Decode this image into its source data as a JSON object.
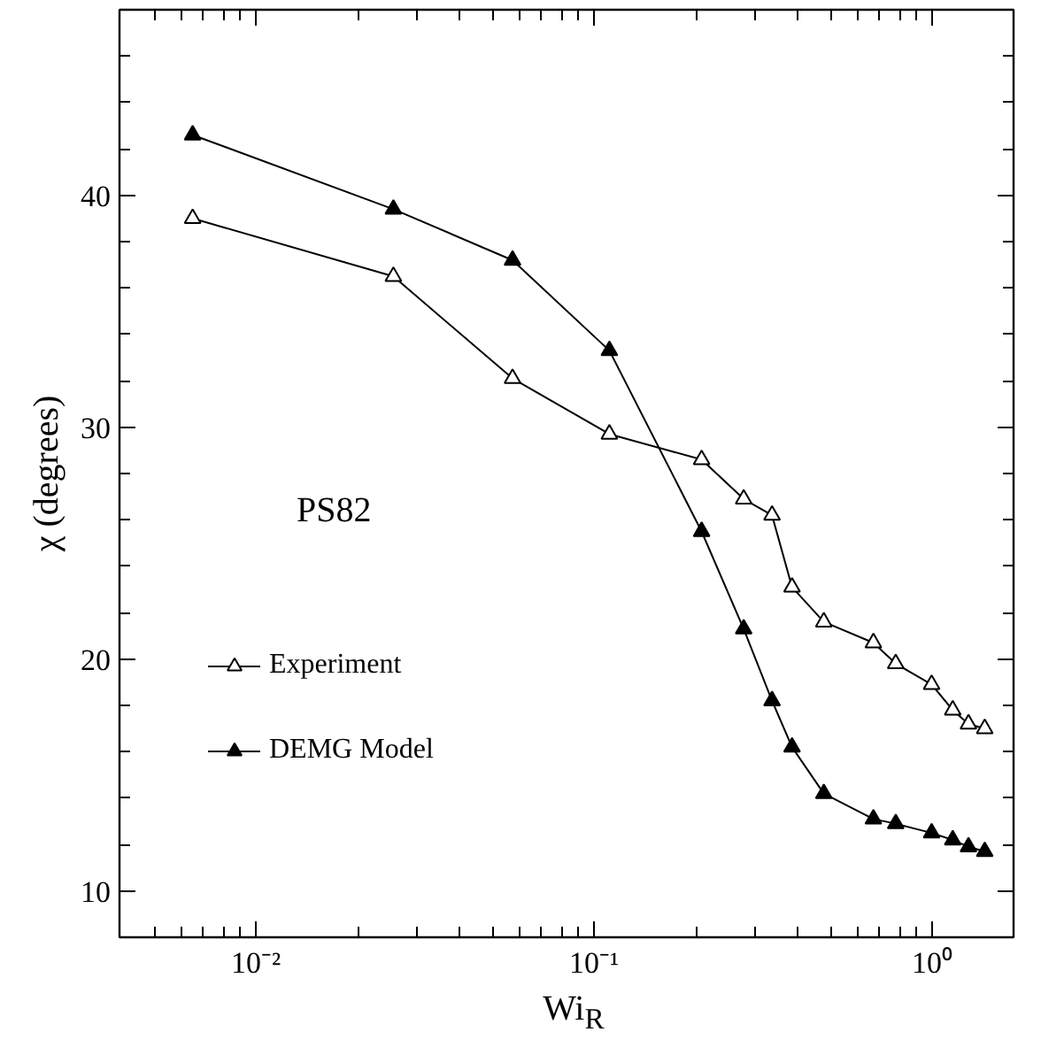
{
  "chart_data": {
    "type": "line",
    "xlabel": "Wi$_{R}$",
    "ylabel": "χ (degrees)",
    "annotations": [
      "PS82"
    ],
    "x": [
      0.0065,
      0.0255,
      0.0574,
      0.111,
      0.208,
      0.277,
      0.336,
      0.385,
      0.478,
      0.67,
      0.78,
      0.996,
      1.15,
      1.28,
      1.43
    ],
    "series": [
      {
        "name": "Experiment",
        "color": "#000000",
        "marker": "triangle_open",
        "values": [
          39.0,
          36.5,
          32.1,
          29.7,
          28.6,
          26.9,
          26.2,
          23.1,
          21.6,
          20.7,
          19.8,
          18.9,
          17.8,
          17.2,
          17.0
        ]
      },
      {
        "name": "DEMG Model",
        "color": "#000000",
        "marker": "triangle",
        "values": [
          42.6,
          39.4,
          37.2,
          33.3,
          25.5,
          21.3,
          18.2,
          16.2,
          14.2,
          13.1,
          12.9,
          12.5,
          12.2,
          11.9,
          11.7
        ]
      }
    ],
    "log": "x",
    "xlim": [
      0.00395,
      1.74
    ],
    "ylim": [
      8,
      48
    ],
    "xticks": [
      {
        "value": 0.005,
        "label": null
      },
      {
        "value": 0.006,
        "label": null
      },
      {
        "value": 0.007,
        "label": null
      },
      {
        "value": 0.008,
        "label": null
      },
      {
        "value": 0.009,
        "label": null
      },
      {
        "value": 0.01,
        "label": "10⁻²"
      },
      {
        "value": 0.02,
        "label": null
      },
      {
        "value": 0.03,
        "label": null
      },
      {
        "value": 0.04,
        "label": null
      },
      {
        "value": 0.05,
        "label": null
      },
      {
        "value": 0.06,
        "label": null
      },
      {
        "value": 0.07,
        "label": null
      },
      {
        "value": 0.08,
        "label": null
      },
      {
        "value": 0.09,
        "label": null
      },
      {
        "value": 0.1,
        "label": "10⁻¹"
      },
      {
        "value": 0.2,
        "label": null
      },
      {
        "value": 0.3,
        "label": null
      },
      {
        "value": 0.4,
        "label": null
      },
      {
        "value": 0.5,
        "label": null
      },
      {
        "value": 0.6,
        "label": null
      },
      {
        "value": 0.7,
        "label": null
      },
      {
        "value": 0.8,
        "label": null
      },
      {
        "value": 0.9,
        "label": null
      },
      {
        "value": 1,
        "label": "10⁰"
      }
    ],
    "yticks": [
      10,
      {
        "value": 12,
        "label": null
      },
      {
        "value": 14,
        "label": null
      },
      {
        "value": 16,
        "label": null
      },
      {
        "value": 18,
        "label": null
      },
      20,
      {
        "value": 22,
        "label": null
      },
      {
        "value": 24,
        "label": null
      },
      {
        "value": 26,
        "label": null
      },
      {
        "value": 28,
        "label": null
      },
      30,
      {
        "value": 32,
        "label": null
      },
      {
        "value": 34,
        "label": null
      },
      {
        "value": 36,
        "label": null
      },
      {
        "value": 38,
        "label": null
      },
      40,
      {
        "value": 42,
        "label": null
      },
      {
        "value": 44,
        "label": null
      },
      {
        "value": 46,
        "label": null
      }
    ],
    "grid": false,
    "legend": "left",
    "line_style": "solid"
  }
}
